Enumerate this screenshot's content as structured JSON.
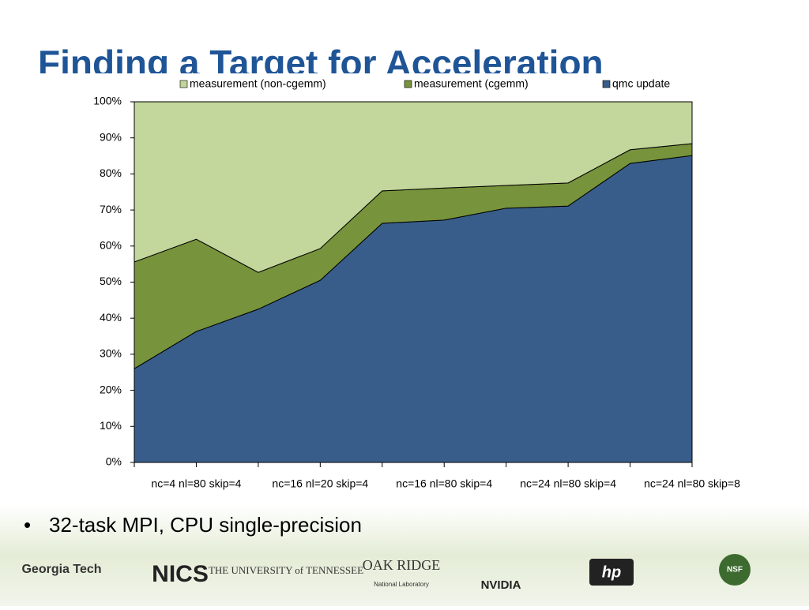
{
  "slide": {
    "title": "Finding a Target for Acceleration",
    "bullet": "32-task MPI, CPU single-precision",
    "logos": [
      "Georgia Tech",
      "NICS",
      "THE UNIVERSITY of TENNESSEE",
      "OAK RIDGE",
      "National Laboratory",
      "NVIDIA",
      "hp",
      "NSF"
    ]
  },
  "chart_data": {
    "type": "stacked_area",
    "categories": [
      null,
      "nc=4 nl=80 skip=4",
      null,
      "nc=16 nl=20 skip=4",
      null,
      "nc=16 nl=80 skip=4",
      null,
      "nc=24 nl=80 skip=4",
      null,
      "nc=24 nl=80 skip=8"
    ],
    "series": [
      {
        "name": "measurement (non-cgemm)",
        "color": "#c3d69b",
        "values": [
          44.4,
          38.1,
          47.3,
          40.7,
          24.7,
          23.9,
          23.2,
          22.5,
          13.3,
          11.6
        ]
      },
      {
        "name": "measurement (cgemm)",
        "color": "#77933c",
        "values": [
          29.6,
          25.6,
          10.2,
          8.8,
          9.0,
          8.9,
          6.3,
          6.4,
          3.8,
          3.3
        ]
      },
      {
        "name": "qmc update",
        "color": "#385d8a",
        "values": [
          26.0,
          36.3,
          42.5,
          50.5,
          66.3,
          67.2,
          70.5,
          71.1,
          82.9,
          85.1
        ]
      }
    ],
    "ylim": [
      0,
      100
    ],
    "yticks": [
      {
        "value": 0,
        "label": "0%"
      },
      {
        "value": 10,
        "label": "10%"
      },
      {
        "value": 20,
        "label": "20%"
      },
      {
        "value": 30,
        "label": "30%"
      },
      {
        "value": 40,
        "label": "40%"
      },
      {
        "value": 50,
        "label": "50%"
      },
      {
        "value": 60,
        "label": "60%"
      },
      {
        "value": 70,
        "label": "70%"
      },
      {
        "value": 80,
        "label": "80%"
      },
      {
        "value": 90,
        "label": "90%"
      },
      {
        "value": 100,
        "label": "100%"
      }
    ],
    "legend": "top"
  }
}
